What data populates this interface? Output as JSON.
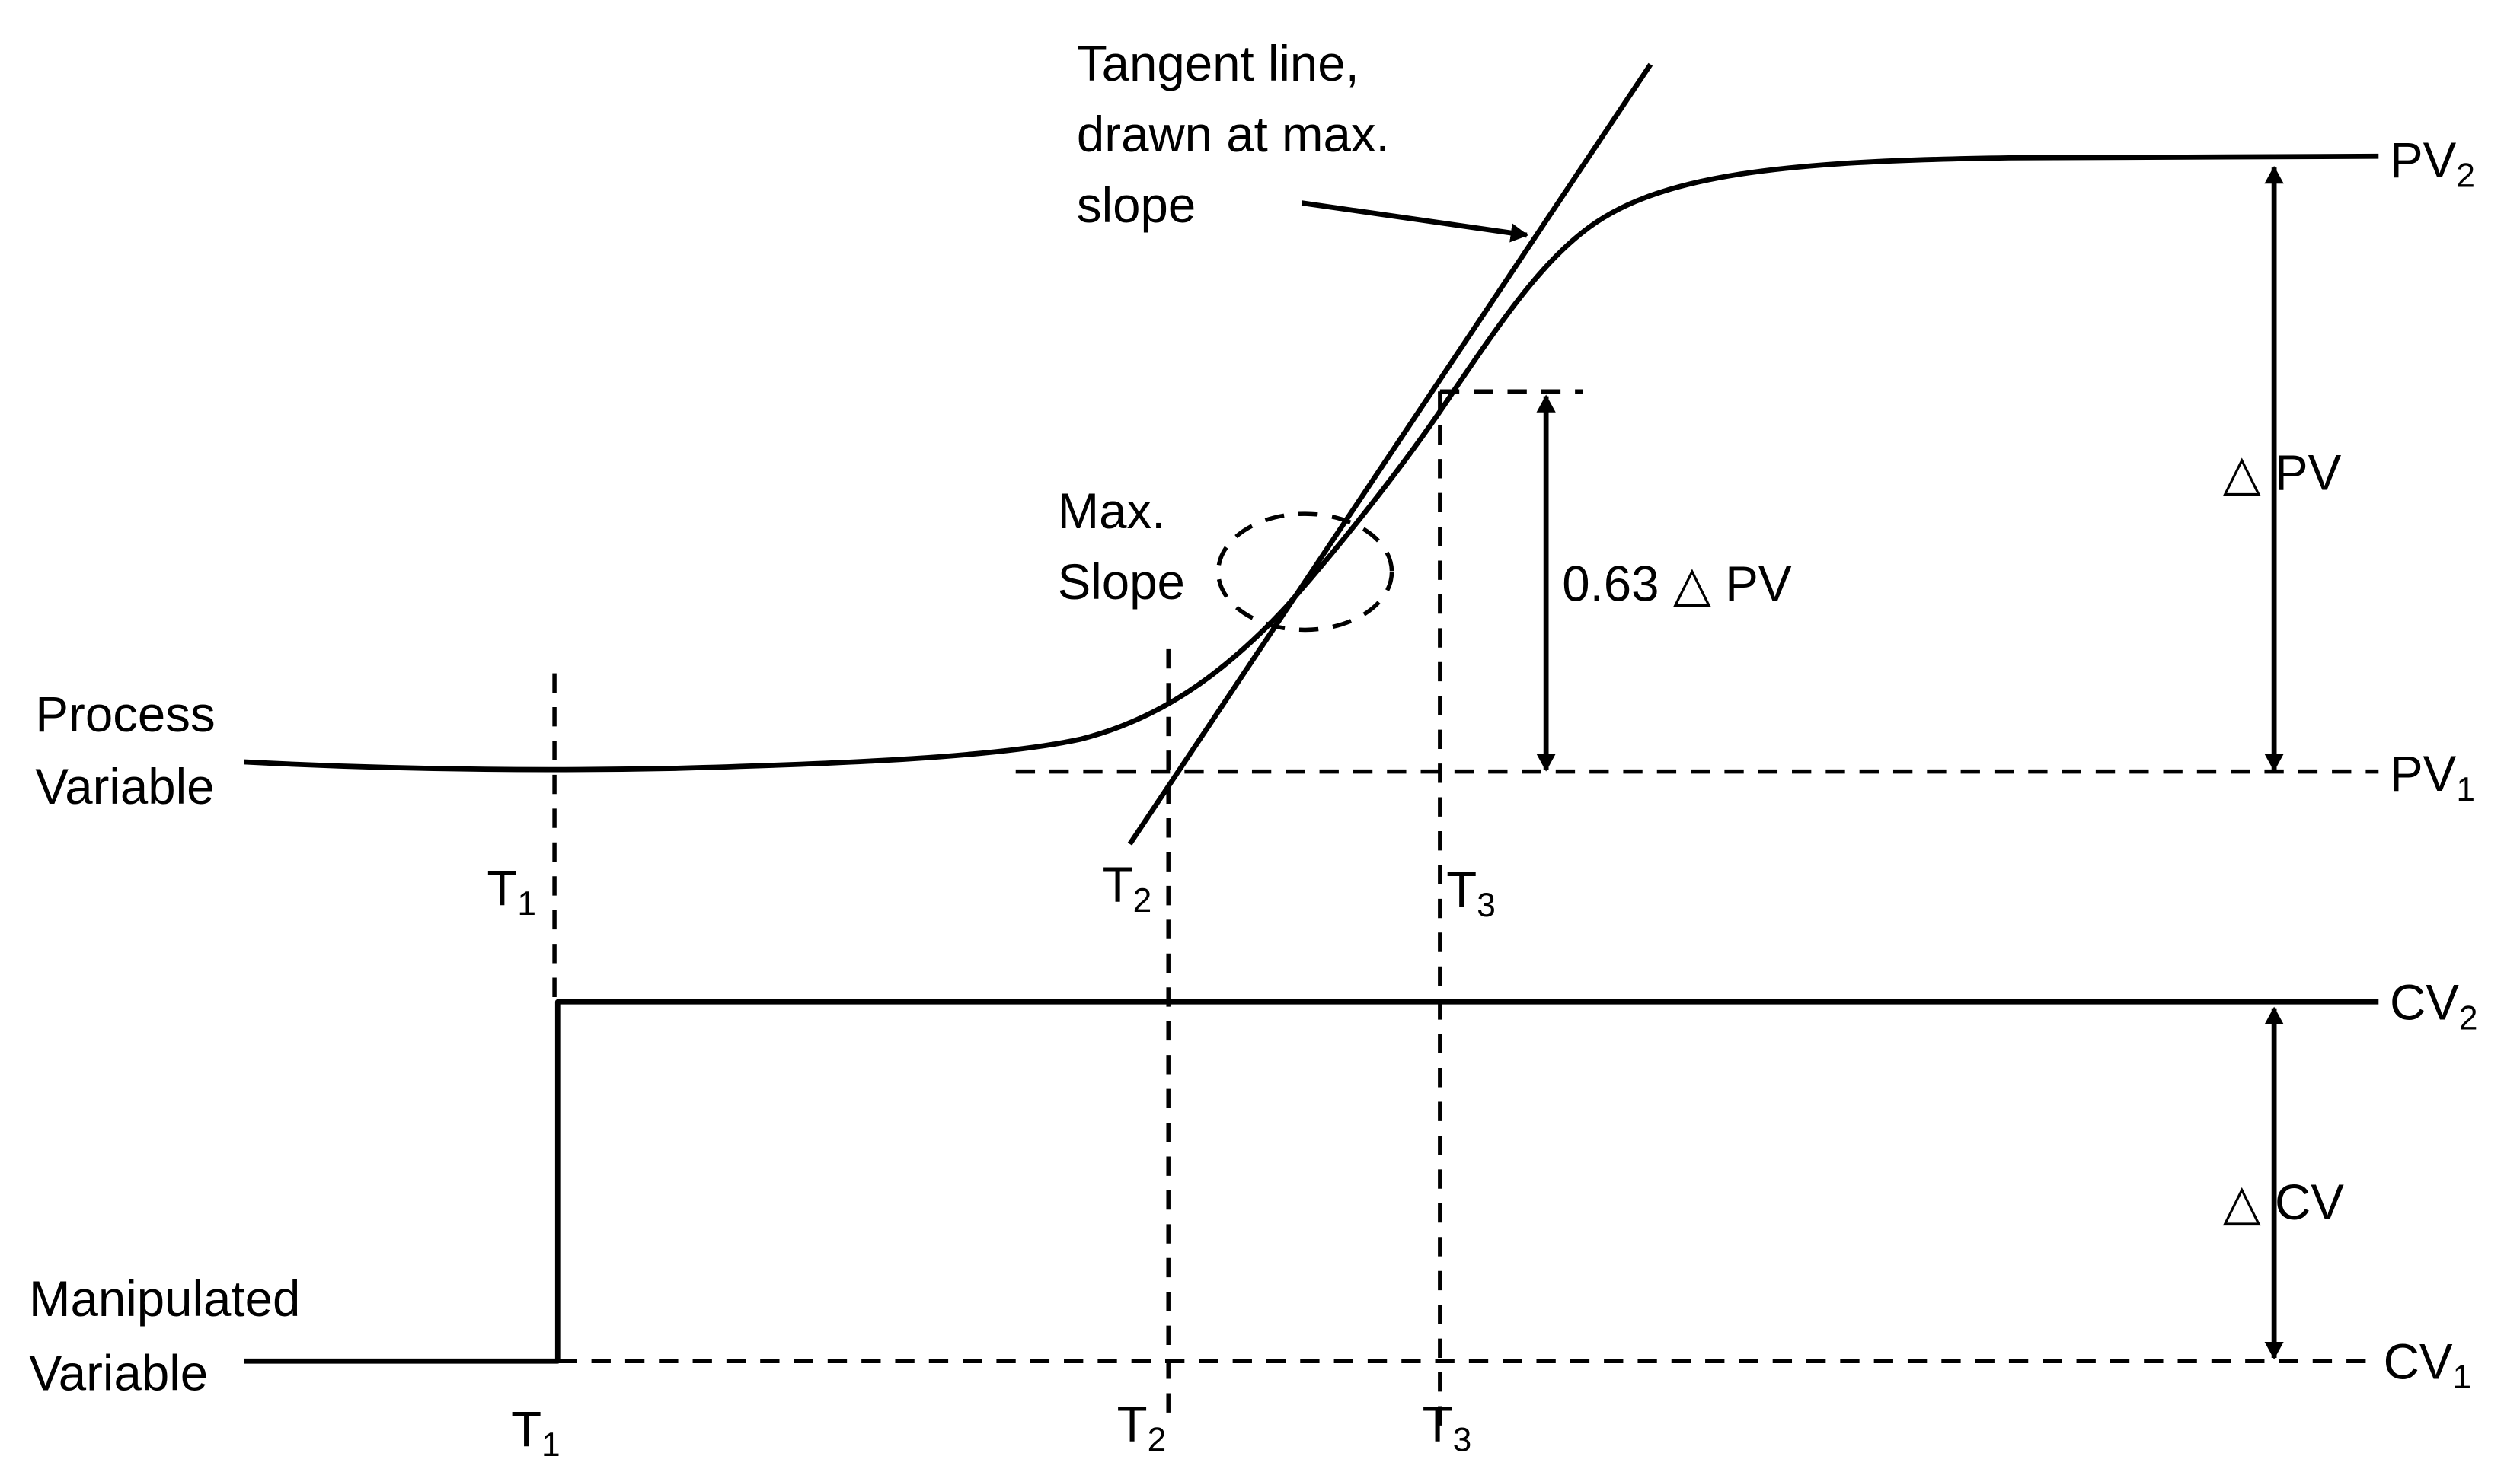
{
  "labels": {
    "process_variable_line1": "Process",
    "process_variable_line2": "Variable",
    "manipulated_variable_line1": "Manipulated",
    "manipulated_variable_line2": "Variable",
    "tangent_line1": "Tangent line,",
    "tangent_line2": "drawn at max.",
    "tangent_line3": "slope",
    "max_slope_line1": "Max.",
    "max_slope_line2": "Slope",
    "frac_63": "0.63 △ PV",
    "delta_pv": "△ PV",
    "delta_cv": "△ CV"
  },
  "levels": {
    "pv2": {
      "main": "PV",
      "sub": "2"
    },
    "pv1": {
      "main": "PV",
      "sub": "1"
    },
    "cv2": {
      "main": "CV",
      "sub": "2"
    },
    "cv1": {
      "main": "CV",
      "sub": "1"
    }
  },
  "time_marks": {
    "t1_upper": {
      "main": "T",
      "sub": "1"
    },
    "t2_upper": {
      "main": "T",
      "sub": "2"
    },
    "t3_upper": {
      "main": "T",
      "sub": "3"
    },
    "t1_lower": {
      "main": "T",
      "sub": "1"
    },
    "t2_lower": {
      "main": "T",
      "sub": "2"
    },
    "t3_lower": {
      "main": "T",
      "sub": "3"
    }
  }
}
